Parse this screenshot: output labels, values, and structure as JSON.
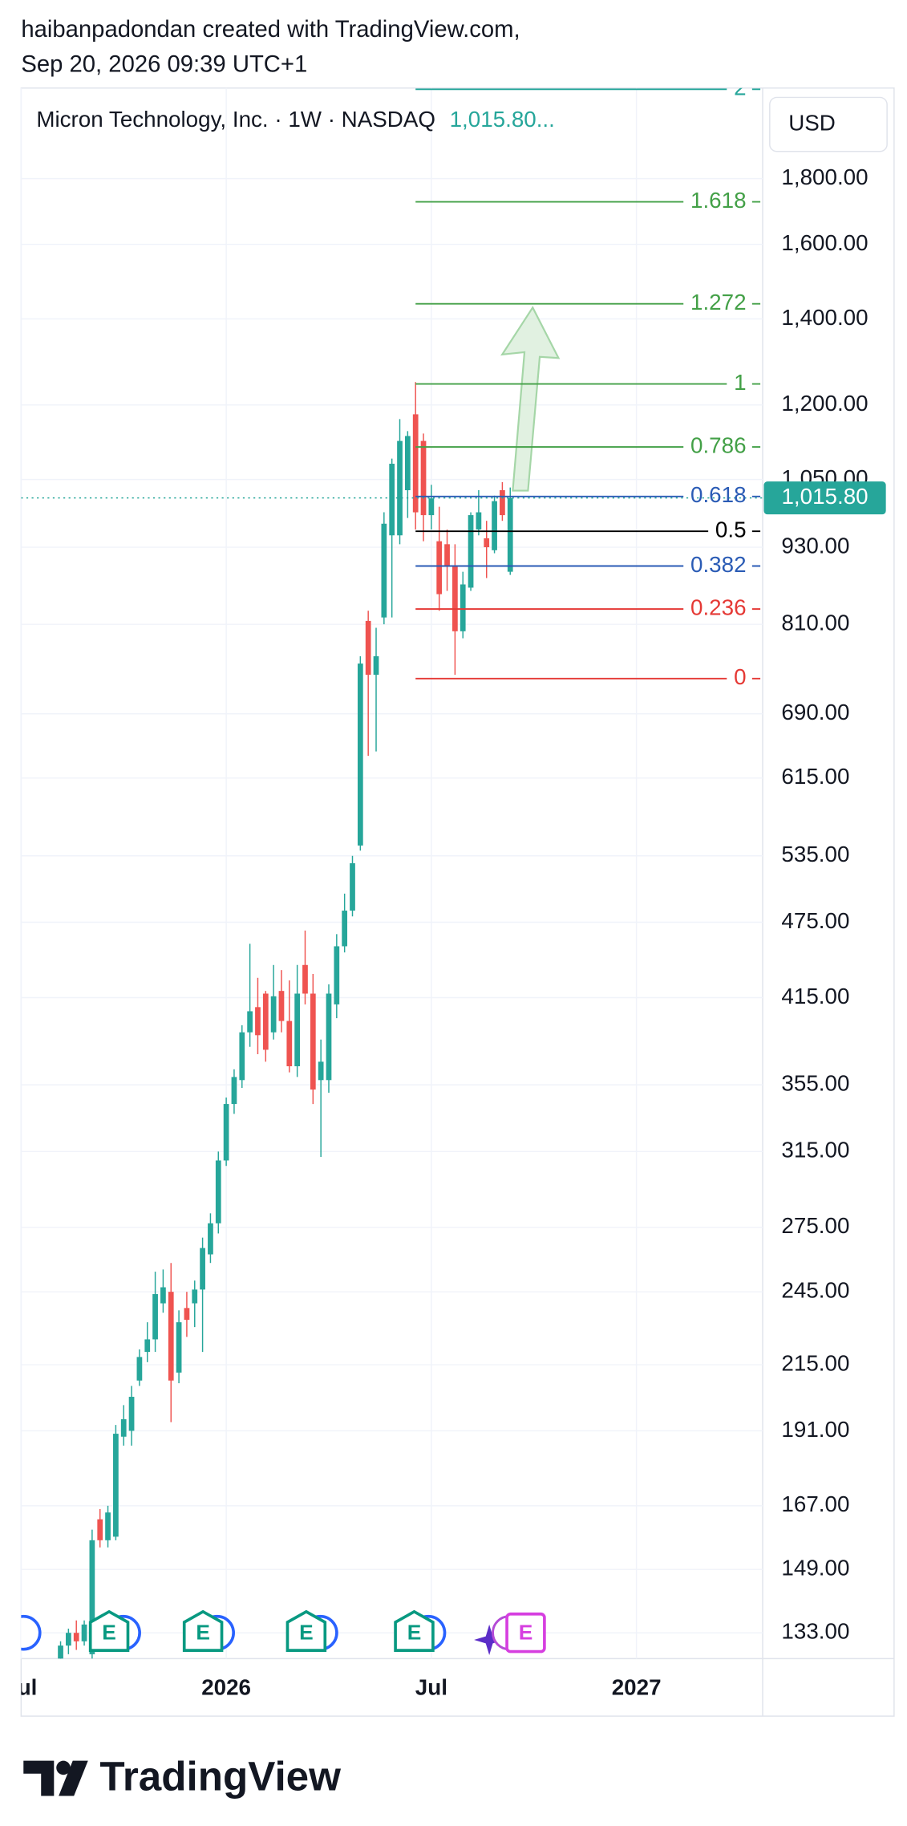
{
  "header": {
    "line1": "haibanpadondan created with TradingView.com,",
    "line2": "Sep 20, 2026 09:39 UTC+1"
  },
  "footer_logo": "TradingView",
  "chart_data": {
    "type": "candlestick",
    "title": "Micron Technology, Inc. · 1W · NASDAQ",
    "legend_price": "1,015.80...",
    "currency": "USD",
    "log_scale": true,
    "grid": true,
    "up_color": "#26a69a",
    "down_color": "#ef5350",
    "x": [
      -21,
      -20,
      -19,
      -18,
      -17,
      -16,
      -15,
      -14,
      -13,
      -12,
      -11,
      -10,
      -9,
      -8,
      -7,
      -6,
      -5,
      -4,
      -3,
      -2,
      -1,
      0,
      1,
      2,
      3,
      4,
      5,
      6,
      7,
      8,
      9,
      10,
      11,
      12,
      13,
      14,
      15,
      16,
      17,
      18,
      19,
      20,
      21,
      22,
      23,
      24,
      25,
      26,
      27,
      28,
      29,
      30,
      31,
      32,
      33,
      34,
      35,
      36
    ],
    "open": [
      127,
      130,
      133,
      131,
      128,
      163,
      157,
      158,
      189,
      191,
      209,
      220,
      225,
      240,
      245,
      212,
      238,
      240,
      246,
      262,
      277,
      310,
      343,
      358,
      390,
      408,
      418,
      390,
      420,
      398,
      367,
      440,
      418,
      358,
      358,
      410,
      455,
      485,
      545,
      815,
      740,
      820,
      950,
      950,
      1030,
      1180,
      1125,
      985,
      940,
      935,
      900,
      800,
      865,
      960,
      945,
      925,
      1030,
      890
    ],
    "high": [
      131,
      134,
      136,
      136,
      160,
      166,
      167,
      193,
      200,
      207,
      221,
      232,
      254,
      255,
      258,
      237,
      245,
      250,
      270,
      282,
      315,
      347,
      365,
      395,
      457,
      430,
      420,
      440,
      436,
      428,
      440,
      468,
      433,
      385,
      425,
      465,
      500,
      535,
      765,
      830,
      805,
      990,
      1090,
      1170,
      1145,
      1250,
      1140,
      1040,
      1000,
      960,
      935,
      890,
      990,
      1030,
      975,
      1020,
      1045,
      1035
    ],
    "low": [
      124,
      128,
      129,
      130,
      127,
      155,
      155,
      157,
      186,
      186,
      207,
      216,
      220,
      236,
      194,
      208,
      226,
      230,
      220,
      258,
      272,
      307,
      337,
      353,
      380,
      375,
      370,
      385,
      390,
      363,
      360,
      410,
      343,
      312,
      350,
      400,
      450,
      480,
      540,
      640,
      645,
      810,
      820,
      935,
      980,
      960,
      940,
      960,
      830,
      860,
      740,
      790,
      860,
      950,
      880,
      920,
      975,
      885
    ],
    "close": [
      130,
      133,
      131,
      135,
      157,
      157,
      165,
      190,
      195,
      203,
      218,
      225,
      244,
      247,
      209,
      232,
      233,
      246,
      265,
      277,
      310,
      343,
      360,
      390,
      405,
      388,
      378,
      416,
      398,
      367,
      418,
      418,
      352,
      370,
      418,
      455,
      485,
      528,
      755,
      740,
      765,
      970,
      1080,
      1125,
      1135,
      990,
      985,
      1015,
      855,
      900,
      800,
      870,
      985,
      990,
      930,
      1010,
      985,
      1015.8
    ],
    "xlim": [
      -26,
      68
    ],
    "xticks": [
      {
        "value": -26,
        "label": "Jul"
      },
      {
        "value": 0,
        "label": "2026"
      },
      {
        "value": 26,
        "label": "Jul"
      },
      {
        "value": 52,
        "label": "2027"
      }
    ],
    "ylim": [
      127,
      2117
    ],
    "yticks": [
      {
        "value": 133,
        "label": "133.00"
      },
      {
        "value": 149,
        "label": "149.00"
      },
      {
        "value": 167,
        "label": "167.00"
      },
      {
        "value": 191,
        "label": "191.00"
      },
      {
        "value": 215,
        "label": "215.00"
      },
      {
        "value": 245,
        "label": "245.00"
      },
      {
        "value": 275,
        "label": "275.00"
      },
      {
        "value": 315,
        "label": "315.00"
      },
      {
        "value": 355,
        "label": "355.00"
      },
      {
        "value": 415,
        "label": "415.00"
      },
      {
        "value": 475,
        "label": "475.00"
      },
      {
        "value": 535,
        "label": "535.00"
      },
      {
        "value": 615,
        "label": "615.00"
      },
      {
        "value": 690,
        "label": "690.00"
      },
      {
        "value": 810,
        "label": "810.00"
      },
      {
        "value": 930,
        "label": "930.00"
      },
      {
        "value": 1050,
        "label": "1,050.00"
      },
      {
        "value": 1200,
        "label": "1,200.00"
      },
      {
        "value": 1400,
        "label": "1,400.00"
      },
      {
        "value": 1600,
        "label": "1,600.00"
      },
      {
        "value": 1800,
        "label": "1,800.00"
      }
    ],
    "last_price": {
      "value": 1015.8,
      "label": "1,015.80"
    },
    "fibonacci": {
      "low": 735,
      "high": 1246,
      "start_x": 24,
      "levels": [
        0,
        0.236,
        0.382,
        0.5,
        0.618,
        0.786,
        1,
        1.272,
        1.618,
        2
      ],
      "level_colors": [
        "#e53935",
        "#e53935",
        "#2a5bb5",
        "#000000",
        "#2a5bb5",
        "#43a047",
        "#43a047",
        "#43a047",
        "#43a047",
        "#26a69a"
      ]
    },
    "event_labels": [
      "E",
      "E",
      "E",
      "E",
      "E"
    ]
  }
}
